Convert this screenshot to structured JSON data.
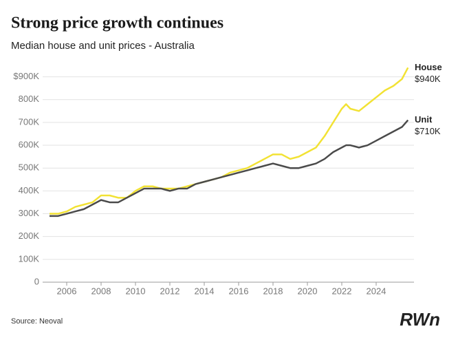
{
  "chart_data": {
    "type": "line",
    "title": "Strong price growth continues",
    "subtitle": "Median house and unit prices - Australia",
    "source": "Source: Neoval",
    "logo": "RWn",
    "x": [
      2005,
      2005.5,
      2006,
      2006.5,
      2007,
      2007.5,
      2008,
      2008.5,
      2009,
      2009.5,
      2010,
      2010.5,
      2011,
      2011.5,
      2012,
      2012.5,
      2013,
      2013.5,
      2014,
      2014.5,
      2015,
      2015.5,
      2016,
      2016.5,
      2017,
      2017.5,
      2018,
      2018.5,
      2019,
      2019.5,
      2020,
      2020.5,
      2021,
      2021.5,
      2022,
      2022.25,
      2022.5,
      2023,
      2023.5,
      2024,
      2024.5,
      2025,
      2025.5,
      2025.85
    ],
    "series": [
      {
        "name": "House",
        "color": "#f2e234",
        "end_value_label": "$940K",
        "values": [
          300,
          300,
          310,
          330,
          340,
          350,
          380,
          380,
          370,
          370,
          400,
          420,
          420,
          410,
          410,
          410,
          420,
          430,
          440,
          450,
          460,
          480,
          490,
          500,
          520,
          540,
          560,
          560,
          540,
          550,
          570,
          590,
          640,
          700,
          760,
          780,
          760,
          750,
          780,
          810,
          840,
          860,
          890,
          940
        ]
      },
      {
        "name": "Unit",
        "color": "#4a4a4a",
        "end_value_label": "$710K",
        "values": [
          290,
          290,
          300,
          310,
          320,
          340,
          360,
          350,
          350,
          370,
          390,
          410,
          410,
          410,
          400,
          410,
          410,
          430,
          440,
          450,
          460,
          470,
          480,
          490,
          500,
          510,
          520,
          510,
          500,
          500,
          510,
          520,
          540,
          570,
          590,
          600,
          600,
          590,
          600,
          620,
          640,
          660,
          680,
          710
        ]
      }
    ],
    "xlim": [
      2004.6,
      2026.2
    ],
    "xticks": [
      2006,
      2008,
      2010,
      2012,
      2014,
      2016,
      2018,
      2020,
      2022,
      2024
    ],
    "ylim": [
      0,
      950
    ],
    "yticks": [
      0,
      {
        "value": 100,
        "label": "100K"
      },
      {
        "value": 200,
        "label": "200K"
      },
      {
        "value": 300,
        "label": "300K"
      },
      {
        "value": 400,
        "label": "400K"
      },
      {
        "value": 500,
        "label": "500K"
      },
      {
        "value": 600,
        "label": "600K"
      },
      {
        "value": 700,
        "label": "700K"
      },
      {
        "value": 800,
        "label": "800K"
      },
      {
        "value": 900,
        "label": "$900K"
      }
    ],
    "grid": true
  }
}
